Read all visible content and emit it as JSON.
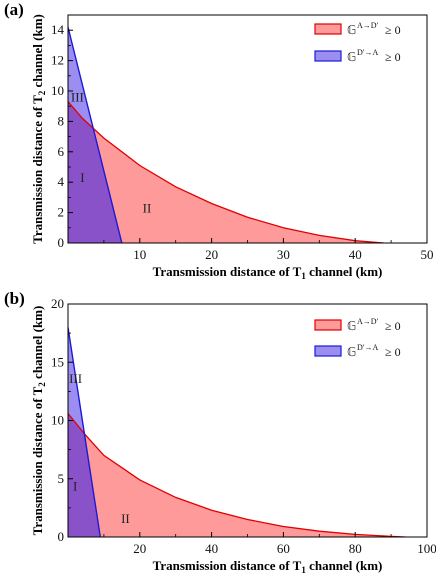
{
  "colors": {
    "red_fill": "#ff9a9a",
    "red_line": "#e00000",
    "blue_fill": "#9b8ef0",
    "blue_line": "#1a1ad8",
    "overlap_fill": "#8a52c8"
  },
  "chart_data": [
    {
      "panel": "(a)",
      "type": "area",
      "xlabel_main": "Transmission distance of  T",
      "xlabel_sub": "1",
      "xlabel_end": " channel (km)",
      "ylabel_main": "Transmission distance of  T",
      "ylabel_sub": "2",
      "ylabel_end": " channel (km)",
      "xlim": [
        0,
        50
      ],
      "ylim": [
        0,
        15
      ],
      "xticks": [
        10,
        20,
        30,
        40,
        50
      ],
      "yticks": [
        0,
        2,
        4,
        6,
        8,
        10,
        12,
        14
      ],
      "legend": [
        {
          "symbol": "𝔾",
          "sup": "A→D′",
          "suffix": "≥ 0",
          "color": "red"
        },
        {
          "symbol": "𝔾",
          "sup": "D′→A",
          "suffix": "≥ 0",
          "color": "blue"
        }
      ],
      "series": [
        {
          "name": "red",
          "x": [
            0,
            2,
            5,
            10,
            15,
            20,
            25,
            30,
            35,
            40,
            44
          ],
          "y": [
            9.3,
            8.2,
            6.9,
            5.1,
            3.7,
            2.6,
            1.7,
            1.0,
            0.5,
            0.15,
            0
          ]
        },
        {
          "name": "blue",
          "x": [
            0,
            7.5
          ],
          "y": [
            14.2,
            0
          ]
        }
      ],
      "regions": [
        {
          "label": "I",
          "x": 2,
          "y": 4
        },
        {
          "label": "II",
          "x": 11,
          "y": 2
        },
        {
          "label": "III",
          "x": 0.4,
          "y": 9.3
        }
      ]
    },
    {
      "panel": "(b)",
      "type": "area",
      "xlabel_main": "Transmission distance of  T",
      "xlabel_sub": "1",
      "xlabel_end": " channel (km)",
      "ylabel_main": "Transmission distance of  T",
      "ylabel_sub": "2",
      "ylabel_end": " channel (km)",
      "xlim": [
        0,
        100
      ],
      "ylim": [
        0,
        20
      ],
      "xticks": [
        20,
        40,
        60,
        80,
        100
      ],
      "yticks": [
        0,
        5,
        10,
        15,
        20
      ],
      "legend": [
        {
          "symbol": "𝔾",
          "sup": "A→D′",
          "suffix": "≥ 0",
          "color": "red"
        },
        {
          "symbol": "𝔾",
          "sup": "D′→A",
          "suffix": "≥ 0",
          "color": "blue"
        }
      ],
      "series": [
        {
          "name": "red",
          "x": [
            0,
            5,
            10,
            20,
            30,
            40,
            50,
            60,
            70,
            80,
            90,
            94
          ],
          "y": [
            10.6,
            8.7,
            7.0,
            4.9,
            3.4,
            2.3,
            1.5,
            0.9,
            0.5,
            0.22,
            0.05,
            0
          ]
        },
        {
          "name": "blue",
          "x": [
            0,
            9
          ],
          "y": [
            18,
            0
          ]
        }
      ],
      "regions": [
        {
          "label": "I",
          "x": 2,
          "y": 4
        },
        {
          "label": "II",
          "x": 16,
          "y": 1.2
        },
        {
          "label": "III",
          "x": 0.3,
          "y": 13.2
        }
      ]
    }
  ]
}
